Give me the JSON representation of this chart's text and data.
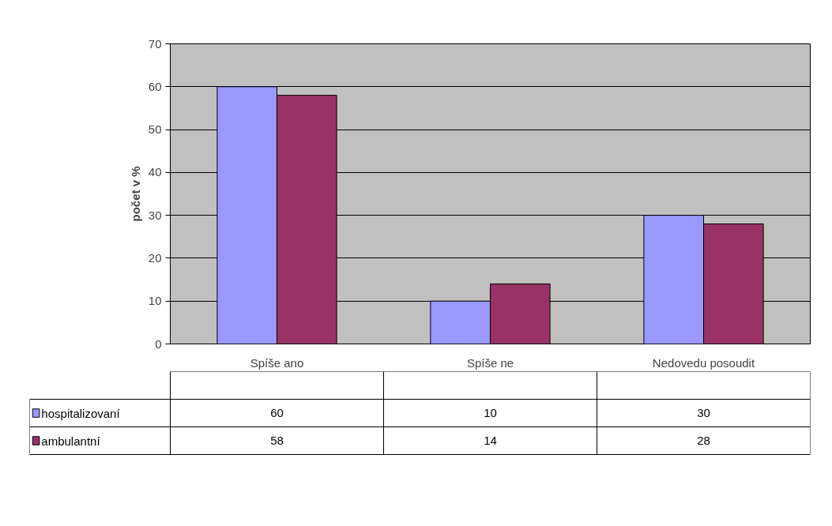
{
  "chart_data": {
    "type": "bar",
    "ylabel": "počet v %",
    "categories": [
      "Spíše ano",
      "Spíše ne",
      "Nedovedu posoudit"
    ],
    "series": [
      {
        "name": "hospitalizovaní",
        "color": "#9999ff",
        "values": [
          60,
          10,
          30
        ]
      },
      {
        "name": "ambulantní",
        "color": "#993366",
        "values": [
          58,
          14,
          28
        ]
      }
    ],
    "ylim": [
      0,
      70
    ],
    "yticks": [
      0,
      10,
      20,
      30,
      40,
      50,
      60,
      70
    ],
    "grid": "y",
    "legend": "bottom left",
    "data_labels": true
  }
}
